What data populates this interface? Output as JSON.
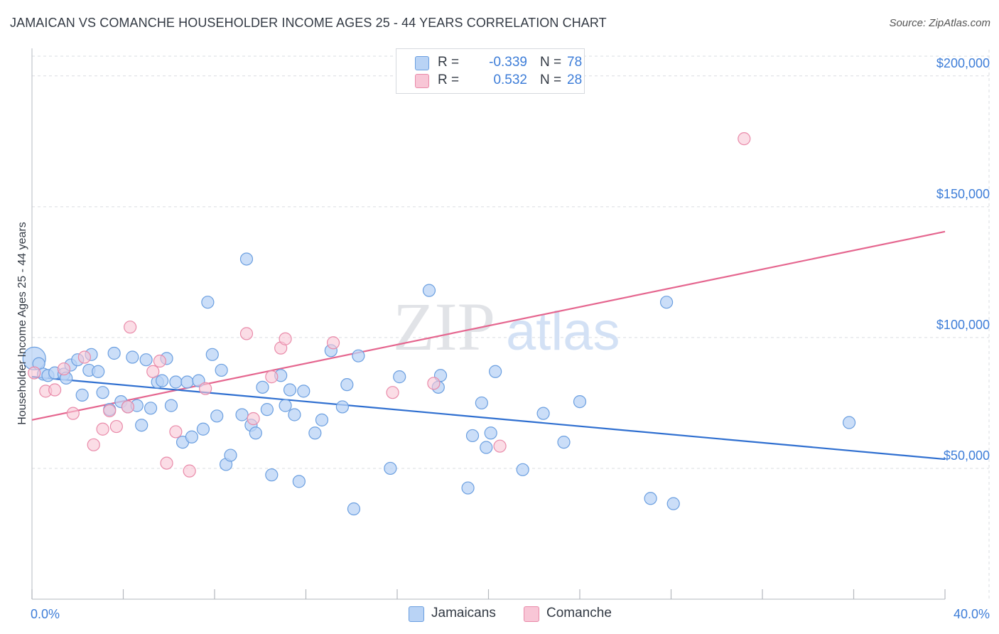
{
  "header": {
    "title": "JAMAICAN VS COMANCHE HOUSEHOLDER INCOME AGES 25 - 44 YEARS CORRELATION CHART",
    "source": "Source: ZipAtlas.com"
  },
  "watermark": {
    "zip": "ZIP",
    "atlas": "atlas"
  },
  "legend_top": {
    "rows": [
      {
        "r_label": "R =",
        "r_value": "-0.339",
        "n_label": "N =",
        "n_value": "78"
      },
      {
        "r_label": "R =",
        "r_value": "0.532",
        "n_label": "N =",
        "n_value": "28"
      }
    ]
  },
  "legend_bottom": {
    "items": [
      {
        "label": "Jamaicans"
      },
      {
        "label": "Comanche"
      }
    ]
  },
  "colors": {
    "jamaicans_fill": "#b9d3f5",
    "jamaicans_stroke": "#6b9fe0",
    "jamaicans_line": "#2f6fd0",
    "comanche_fill": "#f8c6d6",
    "comanche_stroke": "#e98aa9",
    "comanche_line": "#e5668f",
    "tick_text": "#3d7dd8",
    "grid": "#d9dce1"
  },
  "chart_data": {
    "type": "scatter",
    "title": "JAMAICAN VS COMANCHE HOUSEHOLDER INCOME AGES 25 - 44 YEARS CORRELATION CHART",
    "xlabel": "",
    "ylabel": "Householder Income Ages 25 - 44 years",
    "xlim": [
      0,
      40
    ],
    "ylim": [
      0,
      210000
    ],
    "x_tick_labels": [
      "0.0%",
      "40.0%"
    ],
    "y_ticks": [
      50000,
      100000,
      150000,
      200000
    ],
    "y_tick_labels": [
      "$50,000",
      "$100,000",
      "$150,000",
      "$200,000"
    ],
    "grid": true,
    "legend_position": "top-center",
    "series": [
      {
        "name": "Jamaicans",
        "r": -0.339,
        "n": 78,
        "trend": {
          "x": [
            0,
            40
          ],
          "y": [
            85000,
            53500
          ]
        },
        "points": [
          [
            0.1,
            92000
          ],
          [
            0.3,
            90000
          ],
          [
            0.5,
            86000
          ],
          [
            0.7,
            85500
          ],
          [
            1.0,
            86500
          ],
          [
            1.4,
            86000
          ],
          [
            1.5,
            84500
          ],
          [
            1.7,
            89500
          ],
          [
            2.0,
            91500
          ],
          [
            2.2,
            78000
          ],
          [
            2.5,
            87500
          ],
          [
            2.6,
            93500
          ],
          [
            2.9,
            87000
          ],
          [
            3.1,
            79000
          ],
          [
            3.4,
            72500
          ],
          [
            3.6,
            94000
          ],
          [
            3.9,
            75500
          ],
          [
            4.2,
            73500
          ],
          [
            4.4,
            92500
          ],
          [
            4.6,
            74000
          ],
          [
            4.8,
            66500
          ],
          [
            5.0,
            91500
          ],
          [
            5.2,
            73000
          ],
          [
            5.5,
            83000
          ],
          [
            5.7,
            83500
          ],
          [
            5.9,
            92000
          ],
          [
            6.1,
            74000
          ],
          [
            6.3,
            83000
          ],
          [
            6.6,
            60000
          ],
          [
            6.8,
            83000
          ],
          [
            7.0,
            62000
          ],
          [
            7.3,
            83500
          ],
          [
            7.5,
            65000
          ],
          [
            7.7,
            113500
          ],
          [
            7.9,
            93500
          ],
          [
            8.1,
            70000
          ],
          [
            8.3,
            87500
          ],
          [
            8.5,
            51500
          ],
          [
            8.7,
            55000
          ],
          [
            9.2,
            70500
          ],
          [
            9.4,
            130000
          ],
          [
            9.6,
            66500
          ],
          [
            9.8,
            63500
          ],
          [
            10.1,
            81000
          ],
          [
            10.3,
            72500
          ],
          [
            10.5,
            47500
          ],
          [
            10.9,
            85500
          ],
          [
            11.1,
            74000
          ],
          [
            11.3,
            80000
          ],
          [
            11.5,
            70500
          ],
          [
            11.7,
            45000
          ],
          [
            11.9,
            79500
          ],
          [
            12.4,
            63500
          ],
          [
            12.7,
            68500
          ],
          [
            13.1,
            95000
          ],
          [
            13.6,
            73500
          ],
          [
            13.8,
            82000
          ],
          [
            14.1,
            34500
          ],
          [
            14.3,
            93000
          ],
          [
            15.7,
            50000
          ],
          [
            16.1,
            85000
          ],
          [
            17.4,
            118000
          ],
          [
            17.8,
            81000
          ],
          [
            17.9,
            85500
          ],
          [
            19.1,
            42500
          ],
          [
            19.3,
            62500
          ],
          [
            19.7,
            75000
          ],
          [
            19.9,
            58000
          ],
          [
            20.1,
            63500
          ],
          [
            20.3,
            87000
          ],
          [
            21.5,
            49500
          ],
          [
            22.4,
            71000
          ],
          [
            23.3,
            60000
          ],
          [
            24.0,
            75500
          ],
          [
            27.1,
            38500
          ],
          [
            27.8,
            113500
          ],
          [
            28.1,
            36500
          ],
          [
            35.8,
            67500
          ]
        ]
      },
      {
        "name": "Comanche",
        "r": 0.532,
        "n": 28,
        "trend": {
          "x": [
            0,
            40
          ],
          "y": [
            68500,
            140500
          ]
        },
        "points": [
          [
            0.1,
            86500
          ],
          [
            0.6,
            79500
          ],
          [
            1.0,
            80000
          ],
          [
            1.4,
            88000
          ],
          [
            1.8,
            71000
          ],
          [
            2.3,
            92500
          ],
          [
            2.7,
            59000
          ],
          [
            3.1,
            65000
          ],
          [
            3.4,
            72000
          ],
          [
            3.7,
            66000
          ],
          [
            4.2,
            73500
          ],
          [
            4.3,
            104000
          ],
          [
            5.3,
            87000
          ],
          [
            5.6,
            91000
          ],
          [
            5.9,
            52000
          ],
          [
            6.3,
            64000
          ],
          [
            6.9,
            49000
          ],
          [
            7.6,
            80500
          ],
          [
            9.4,
            101500
          ],
          [
            9.7,
            69000
          ],
          [
            10.5,
            85000
          ],
          [
            10.9,
            96000
          ],
          [
            11.1,
            99500
          ],
          [
            13.2,
            98000
          ],
          [
            15.8,
            79000
          ],
          [
            17.6,
            82500
          ],
          [
            20.5,
            58500
          ],
          [
            31.2,
            176000
          ]
        ]
      }
    ]
  }
}
